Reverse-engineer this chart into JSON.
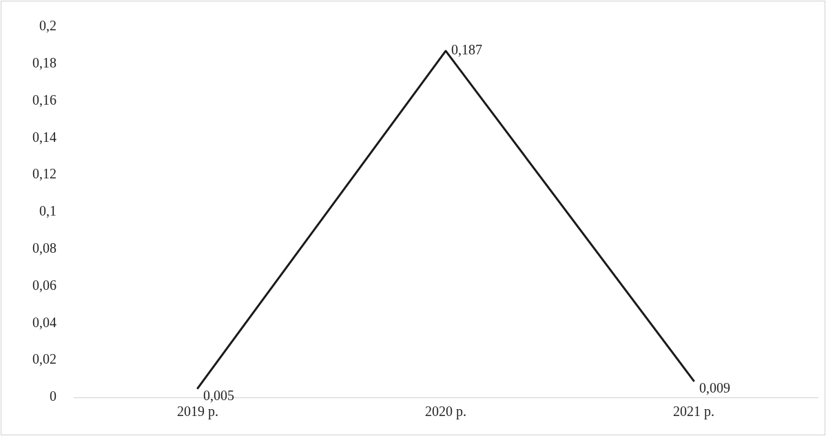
{
  "chart_data": {
    "type": "line",
    "categories": [
      "2019 р.",
      "2020 р.",
      "2021 р."
    ],
    "series": [
      {
        "color": "#1a1a1a",
        "values": [
          0.005,
          0.187,
          0.009
        ],
        "value_labels": [
          "0,005",
          "0,187",
          "0,009"
        ]
      }
    ],
    "ylim": [
      0,
      0.2
    ],
    "yticks": [
      {
        "value": 0,
        "label": "0"
      },
      {
        "value": 0.02,
        "label": "0,02"
      },
      {
        "value": 0.04,
        "label": "0,04"
      },
      {
        "value": 0.06,
        "label": "0,06"
      },
      {
        "value": 0.08,
        "label": "0,08"
      },
      {
        "value": 0.1,
        "label": "0,1"
      },
      {
        "value": 0.12,
        "label": "0,12"
      },
      {
        "value": 0.14,
        "label": "0,14"
      },
      {
        "value": 0.16,
        "label": "0,16"
      },
      {
        "value": 0.18,
        "label": "0,18"
      },
      {
        "value": 0.2,
        "label": "0,2"
      }
    ],
    "grid": false,
    "legend": false,
    "marker": "none",
    "line_style": "solid"
  }
}
